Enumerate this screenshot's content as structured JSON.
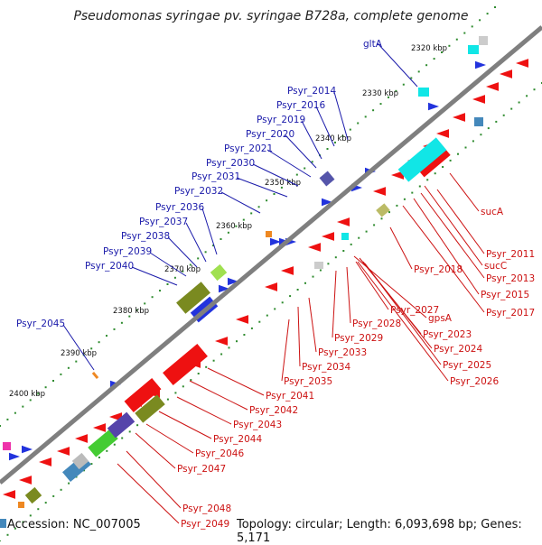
{
  "title": "Pseudomonas syringae pv. syringae B728a, complete genome",
  "footer": {
    "accession": "Accession: NC_007005",
    "summary": "Topology: circular; Length: 6,093,698 bp; Genes: 5,171"
  },
  "colors": {
    "backbone": "#7f7f7f",
    "blue_labels": "#1a1aaa",
    "red_labels": "#cc1111",
    "gene_forward": "#2233dd",
    "gene_reverse": "#ee1111",
    "tick_dots": "#2e8b2e"
  },
  "kbp_ticks": [
    "2320 kbp",
    "2330 kbp",
    "2340 kbp",
    "2350 kbp",
    "2360 kbp",
    "2370 kbp",
    "2380 kbp",
    "2390 kbp",
    "2400 kbp"
  ],
  "blue_labels": [
    "gltA",
    "Psyr_2014",
    "Psyr_2016",
    "Psyr_2019",
    "Psyr_2020",
    "Psyr_2021",
    "Psyr_2030",
    "Psyr_2031",
    "Psyr_2032",
    "Psyr_2036",
    "Psyr_2037",
    "Psyr_2038",
    "Psyr_2039",
    "Psyr_2040",
    "Psyr_2045"
  ],
  "red_labels": [
    "sucA",
    "Psyr_2011",
    "sucC",
    "Psyr_2013",
    "Psyr_2015",
    "Psyr_2017",
    "Psyr_2018",
    "gpsA",
    "Psyr_2027",
    "Psyr_2028",
    "Psyr_2029",
    "Psyr_2023",
    "Psyr_2024",
    "Psyr_2025",
    "Psyr_2026",
    "Psyr_2033",
    "Psyr_2034",
    "Psyr_2035",
    "Psyr_2041",
    "Psyr_2042",
    "Psyr_2043",
    "Psyr_2044",
    "Psyr_2046",
    "Psyr_2047",
    "Psyr_2048",
    "Psyr_2049"
  ]
}
